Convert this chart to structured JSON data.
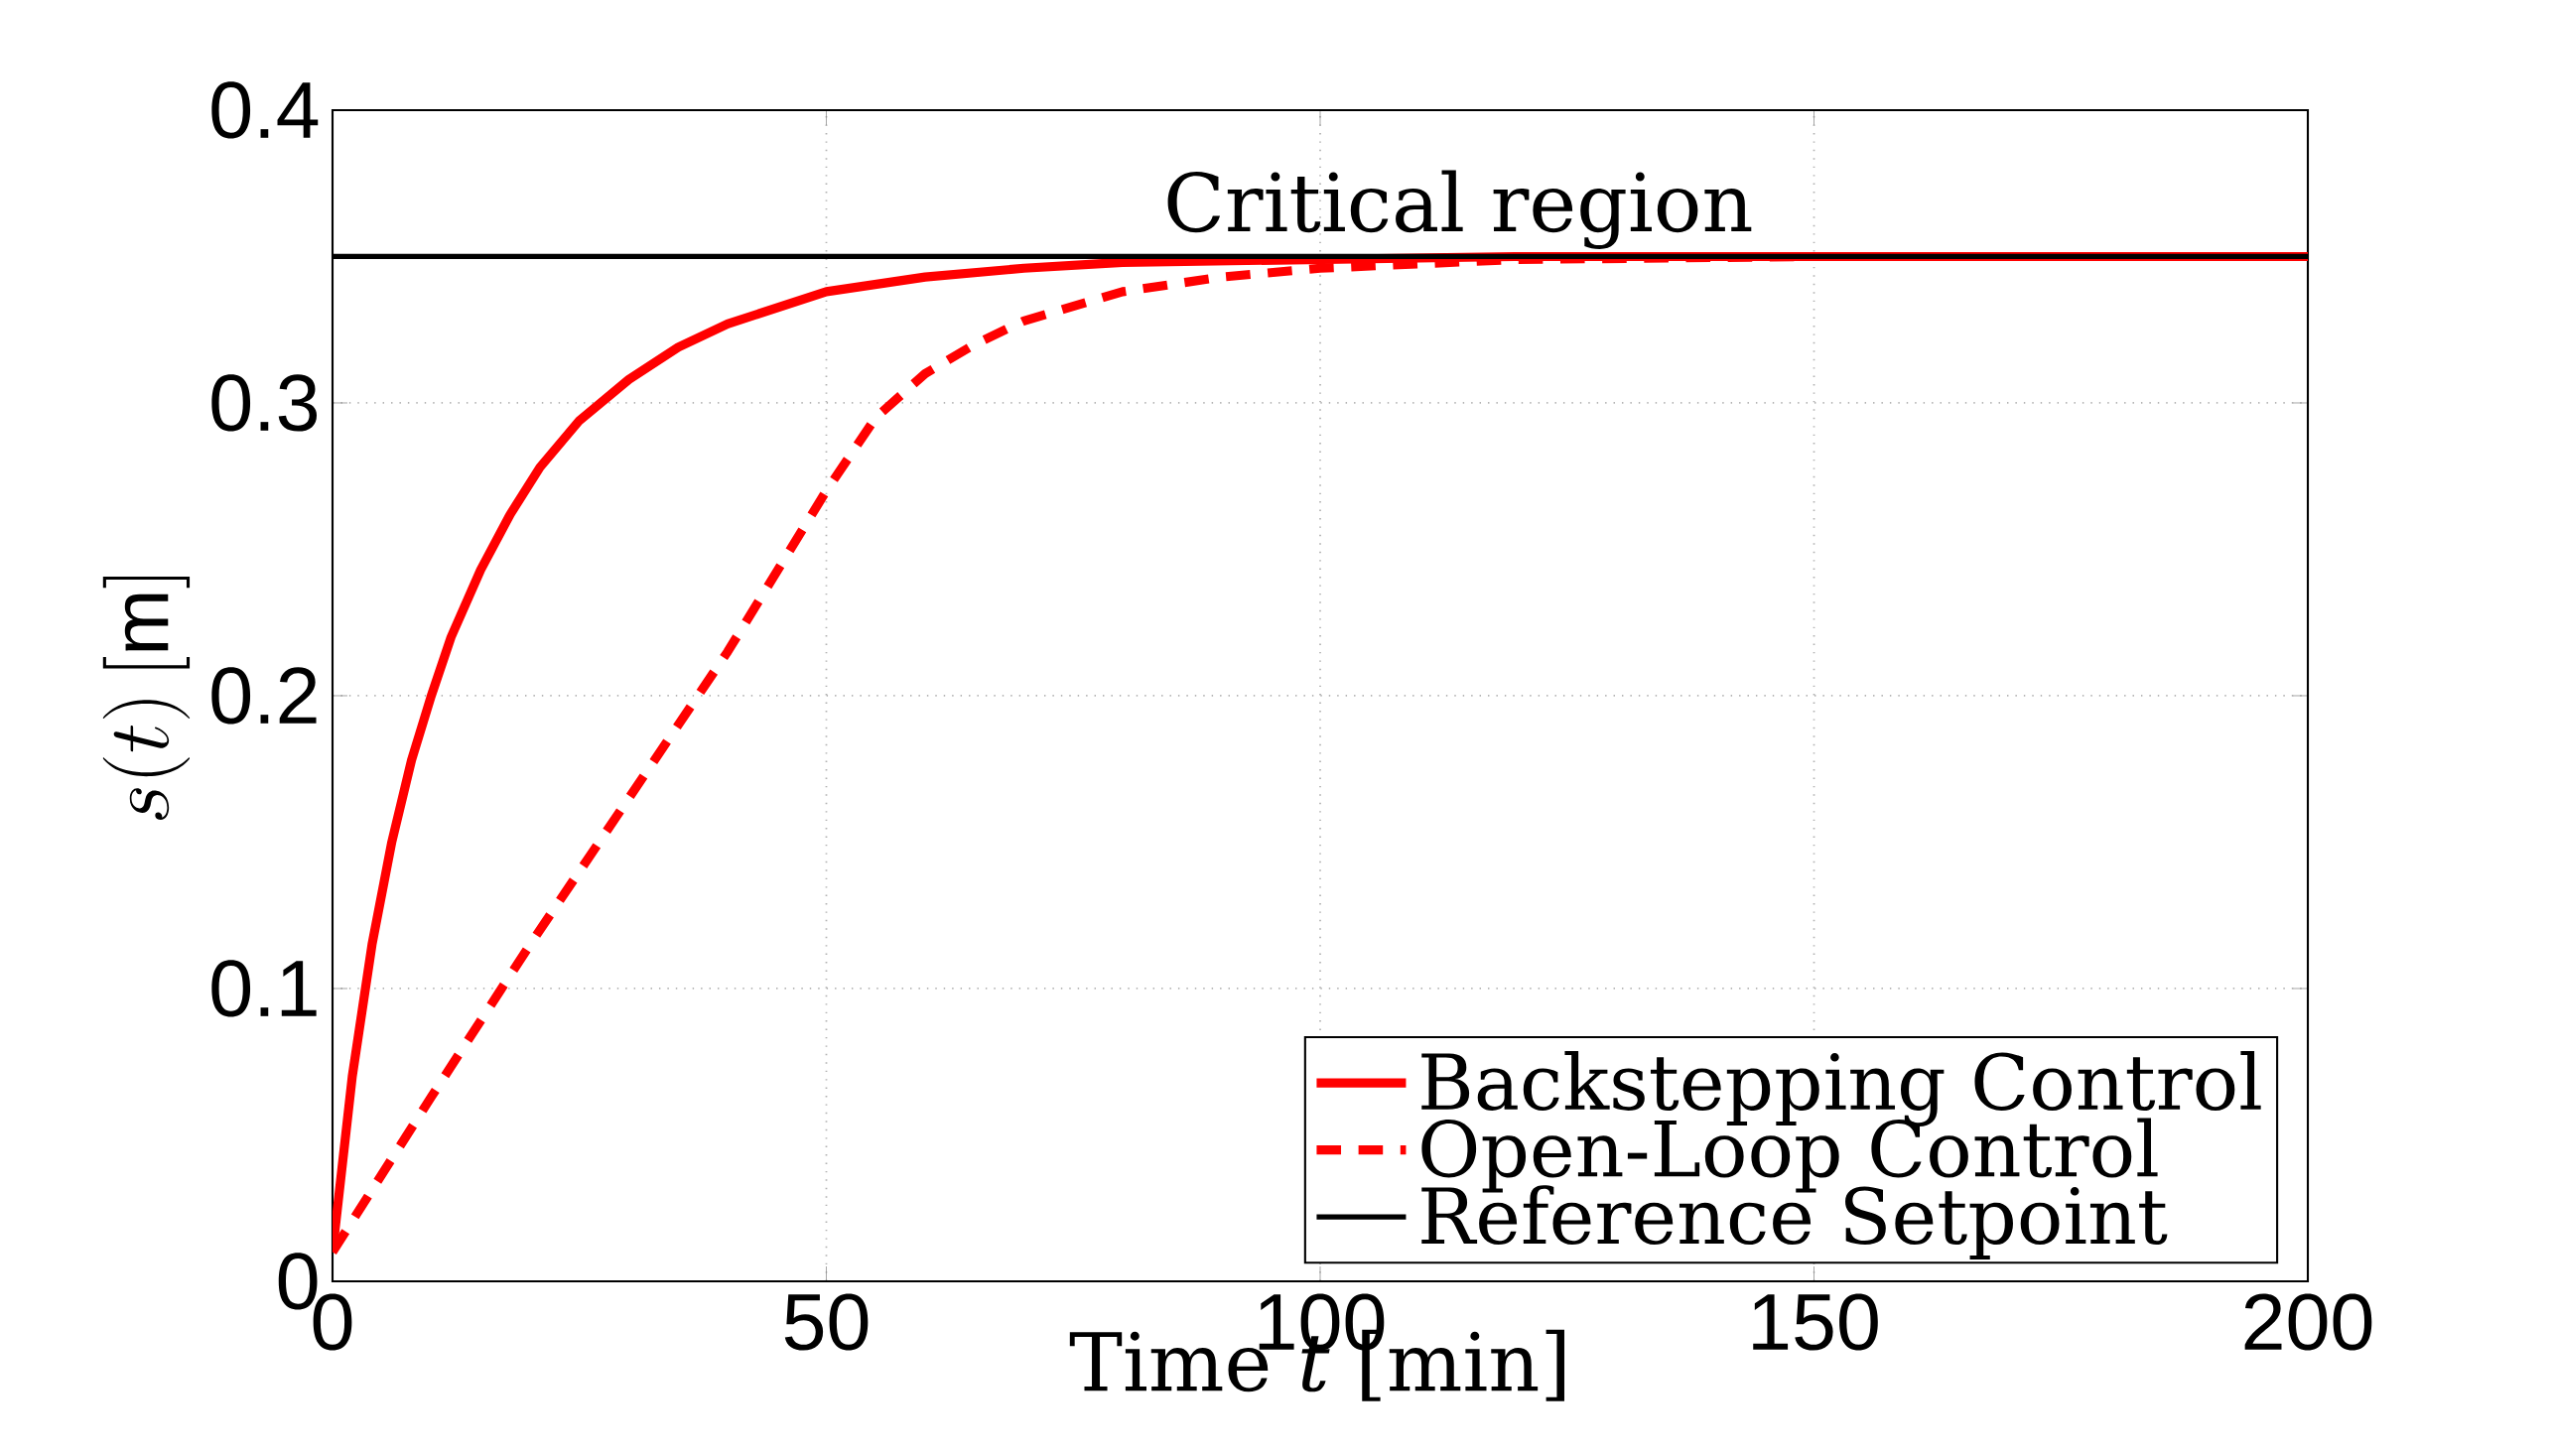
{
  "chart_data": {
    "type": "line",
    "xlabel": "Time *t* [min]",
    "ylabel": "s(t)\\,[\\mathrm{m}]",
    "annotations": [
      "Critical region"
    ],
    "x": [
      0,
      2,
      4,
      6,
      8,
      10,
      12,
      15,
      18,
      21,
      25,
      30,
      35,
      40,
      50,
      60,
      70,
      80,
      100,
      120,
      200
    ],
    "series": [
      {
        "name": "Backstepping Control",
        "color": "#ff0000",
        "line_style": "solid",
        "values": [
          0.01,
          0.07,
          0.115,
          0.15,
          0.178,
          0.2,
          0.22,
          0.243,
          0.262,
          0.278,
          0.294,
          0.308,
          0.319,
          0.327,
          0.338,
          0.343,
          0.346,
          0.348,
          0.349,
          0.35,
          0.35
        ]
      },
      {
        "name": "Open-Loop Control",
        "color": "#ff0000",
        "line_style": "dashed",
        "x": [
          0,
          10,
          20,
          30,
          40,
          50,
          55,
          60,
          65,
          70,
          80,
          90,
          100,
          120,
          150,
          200
        ],
        "values": [
          0.01,
          0.063,
          0.115,
          0.165,
          0.215,
          0.27,
          0.295,
          0.31,
          0.32,
          0.328,
          0.338,
          0.343,
          0.346,
          0.349,
          0.35,
          0.35
        ]
      },
      {
        "name": "Reference Setpoint",
        "color": "#000000",
        "line_style": "solid",
        "x": [
          0,
          200
        ],
        "values": [
          0.35,
          0.35
        ]
      }
    ],
    "xlim": [
      0,
      200
    ],
    "ylim": [
      0,
      0.4
    ],
    "xticks": [
      0,
      50,
      100,
      150,
      200
    ],
    "yticks": [
      0,
      0.1,
      0.2,
      0.3,
      0.4
    ],
    "grid": true,
    "legend": "bottom right",
    "marker": "none"
  }
}
